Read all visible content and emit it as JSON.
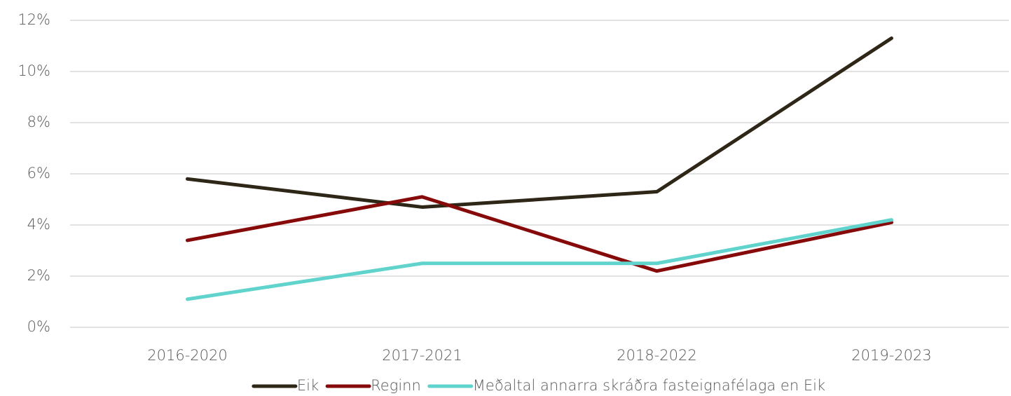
{
  "chart_data": {
    "type": "line",
    "categories": [
      "2016-2020",
      "2017-2021",
      "2018-2022",
      "2019-2023"
    ],
    "series": [
      {
        "name": "Eik",
        "color": "#2e2616",
        "values": [
          5.8,
          4.7,
          5.3,
          11.3
        ]
      },
      {
        "name": "Reginn",
        "color": "#870a0a",
        "values": [
          3.4,
          5.1,
          2.2,
          4.1
        ]
      },
      {
        "name": "Meðaltal annarra skráðra fasteignafélaga en Eik",
        "color": "#5fd3cc",
        "values": [
          1.1,
          2.5,
          2.5,
          4.2
        ]
      }
    ],
    "ylim": [
      0,
      12
    ],
    "yticks": [
      {
        "value": 0,
        "label": "0%"
      },
      {
        "value": 2,
        "label": "2%"
      },
      {
        "value": 4,
        "label": "4%"
      },
      {
        "value": 6,
        "label": "6%"
      },
      {
        "value": 8,
        "label": "8%"
      },
      {
        "value": 10,
        "label": "10%"
      },
      {
        "value": 12,
        "label": "12%"
      }
    ],
    "grid": true,
    "legend": "bottom"
  }
}
